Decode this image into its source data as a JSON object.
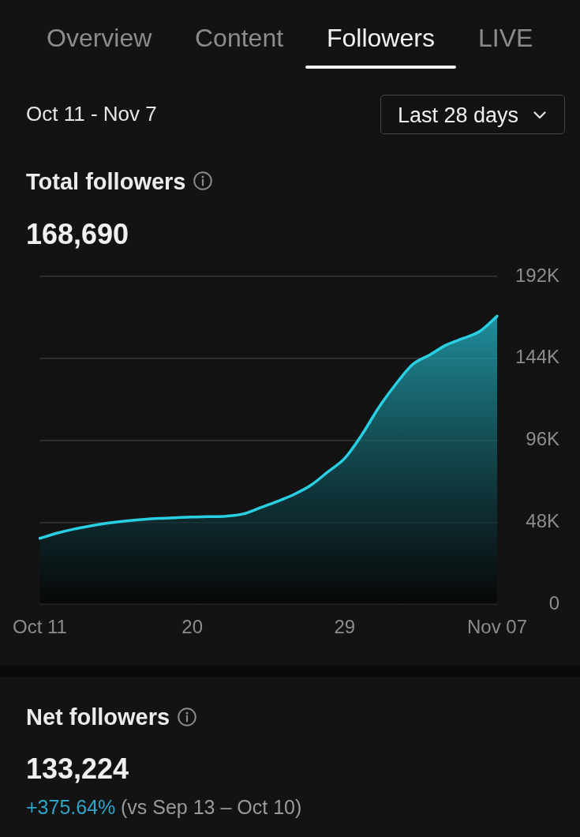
{
  "chart_data": [
    {
      "type": "area",
      "title": "Total followers",
      "subtitle": "168,690",
      "annotations": [
        "Overview",
        "Content",
        "Followers",
        "LIVE",
        "Oct 11 - Nov 7",
        "Last 28 days"
      ],
      "categories": [
        "Oct 11",
        null,
        null,
        null,
        null,
        null,
        null,
        null,
        null,
        "20",
        null,
        null,
        null,
        null,
        null,
        null,
        null,
        null,
        "29",
        null,
        null,
        null,
        null,
        null,
        null,
        null,
        null,
        "Nov 07"
      ],
      "values": [
        38500,
        41500,
        43900,
        45800,
        47400,
        48600,
        49500,
        50200,
        50600,
        51000,
        51200,
        51500,
        52800,
        56400,
        60100,
        64200,
        69600,
        77400,
        85400,
        99000,
        115000,
        128600,
        140300,
        145900,
        151800,
        155700,
        160000,
        168690
      ],
      "color": "#29cfe3",
      "ylim": [
        0,
        192000
      ],
      "yticks": [
        0,
        {
          "value": 48000,
          "label": "48K"
        },
        {
          "value": 96000,
          "label": "96K"
        },
        {
          "value": 144000,
          "label": "144K"
        },
        {
          "value": 192000,
          "label": "192K"
        }
      ],
      "grid": "y",
      "legend": false,
      "marker": "none"
    },
    {
      "type": "other",
      "title": "Net followers",
      "subtitle": "133,224",
      "annotations": [
        "+375.64%",
        "(vs Sep 13 – Oct 10)"
      ]
    }
  ]
}
